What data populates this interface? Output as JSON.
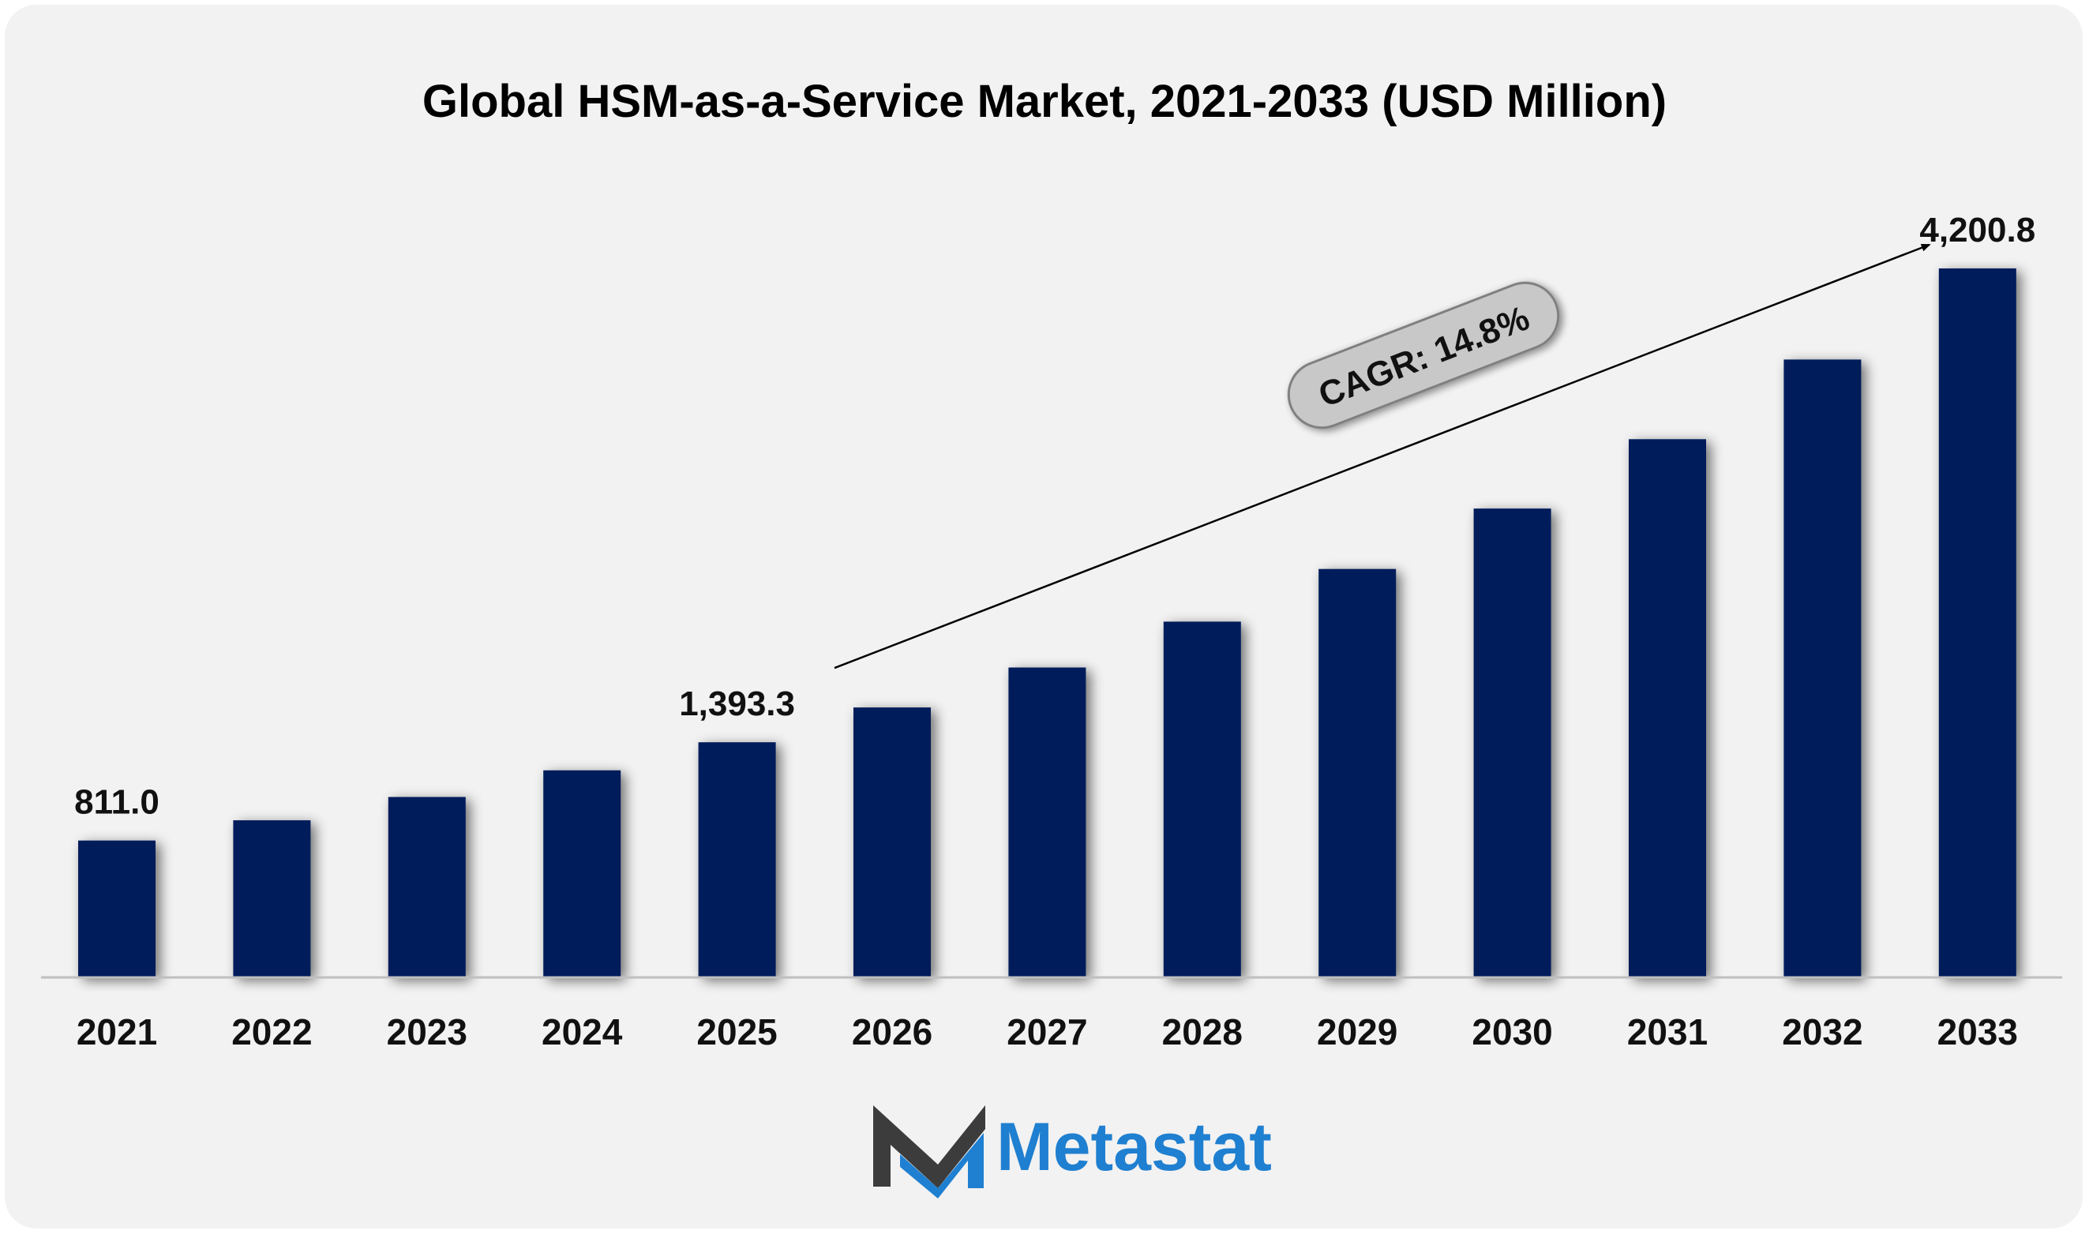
{
  "chart_data": {
    "type": "bar",
    "title": "Global HSM-as-a-Service Market, 2021-2033 (USD Million)",
    "categories": [
      "2021",
      "2022",
      "2023",
      "2024",
      "2025",
      "2026",
      "2027",
      "2028",
      "2029",
      "2030",
      "2031",
      "2032",
      "2033"
    ],
    "values": [
      811.0,
      931.0,
      1069.0,
      1227.0,
      1393.3,
      1599.5,
      1836.2,
      2108.0,
      2420.0,
      2778.0,
      3189.0,
      3661.0,
      4200.8
    ],
    "data_labels": [
      {
        "category": "2021",
        "text": "811.0"
      },
      {
        "category": "2025",
        "text": "1,393.3"
      },
      {
        "category": "2033",
        "text": "4,200.8"
      }
    ],
    "annotation": {
      "text": "CAGR: 14.8%",
      "from_category": "2026",
      "to_category": "2033"
    },
    "ylim": [
      0,
      4200.8
    ],
    "grid": false,
    "legend": "none",
    "colors": {
      "bar": "#001e5a",
      "background": "#f2f2f2",
      "axis": "#bfbfbf",
      "badge_fill": "#c8c8c8",
      "badge_stroke": "#7f7f7f"
    }
  },
  "brand": {
    "name": "Metastat",
    "colors": {
      "dark": "#3c3c3c",
      "blue": "#1f7fd0"
    }
  }
}
